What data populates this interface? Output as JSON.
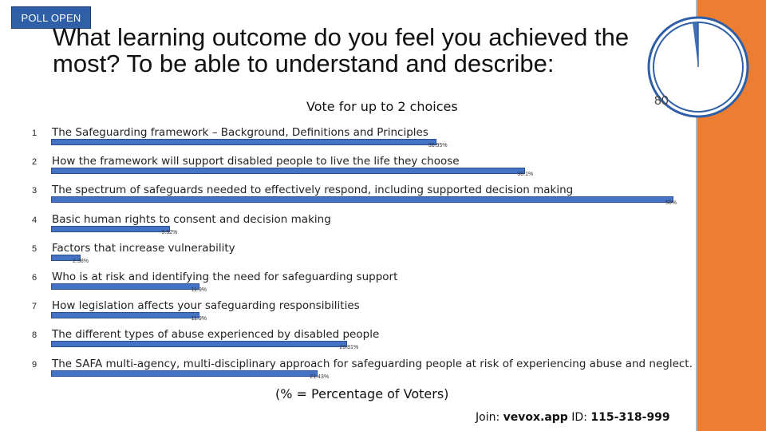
{
  "badge": "POLL OPEN",
  "title": "What learning outcome do you feel you achieved the most? To be able to understand and describe:",
  "subtitle": "Vote for up to 2 choices",
  "timer": {
    "count": "80",
    "progress": 0.98
  },
  "options": [
    {
      "num": "1",
      "label": "The Safeguarding framework – Background, Definitions and Principles",
      "value": 30.95,
      "pct": "30.95%"
    },
    {
      "num": "2",
      "label": "How the framework will support disabled people to live the life they choose",
      "value": 38.1,
      "pct": "38.1%"
    },
    {
      "num": "3",
      "label": "The spectrum of safeguards needed to effectively respond, including supported decision making",
      "value": 50,
      "pct": "50%"
    },
    {
      "num": "4",
      "label": "Basic human rights to consent and decision making",
      "value": 9.52,
      "pct": "9.52%"
    },
    {
      "num": "5",
      "label": "Factors that increase vulnerability",
      "value": 2.38,
      "pct": "2.38%"
    },
    {
      "num": "6",
      "label": "Who is at risk and identifying the need for safeguarding support",
      "value": 11.9,
      "pct": "11.9%"
    },
    {
      "num": "7",
      "label": "How legislation affects your safeguarding responsibilities",
      "value": 11.9,
      "pct": "11.9%"
    },
    {
      "num": "8",
      "label": "The different types of abuse experienced by disabled people",
      "value": 23.81,
      "pct": "23.81%"
    },
    {
      "num": "9",
      "label": "The SAFA multi-agency, multi-disciplinary approach for safeguarding people at risk of experiencing abuse and neglect.",
      "value": 21.43,
      "pct": "21.43%"
    }
  ],
  "footnote": "(% = Percentage of Voters)",
  "join": {
    "prefix": "Join: ",
    "site": "vevox.app",
    "id_label": " ID: ",
    "id": "115-318-999"
  },
  "colors": {
    "bar": "#4472c4",
    "badge": "#2f5fa7",
    "panel": "#ed7d31",
    "timer": "#2f5fa7"
  }
}
